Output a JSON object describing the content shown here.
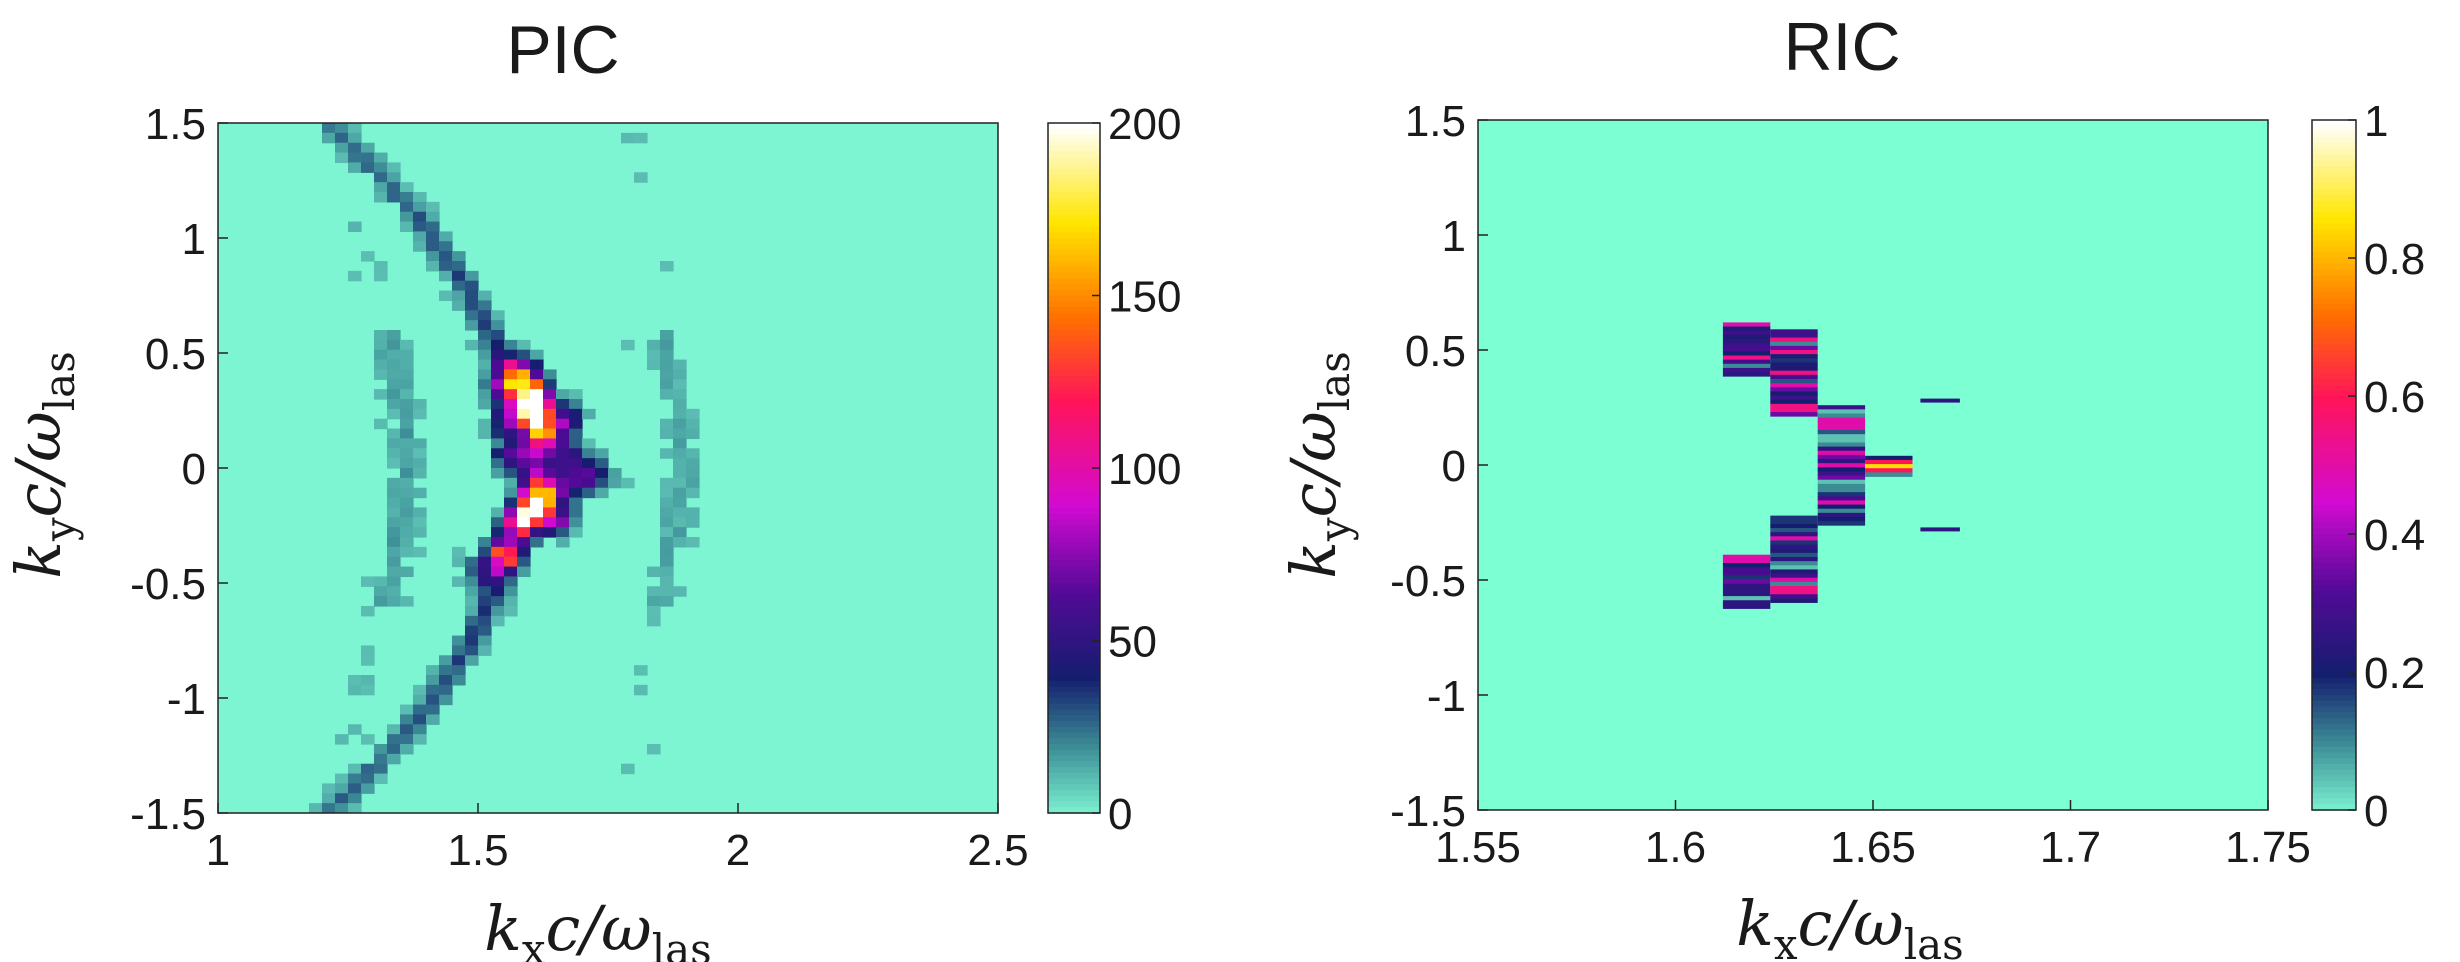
{
  "chart_data": [
    {
      "type": "heatmap",
      "title": "PIC",
      "xlabel": {
        "base": "k",
        "sub": "x",
        "rest": "c/ω",
        "rest_sub": "las"
      },
      "ylabel": {
        "base": "k",
        "sub": "y",
        "rest": "c/ω",
        "rest_sub": "las"
      },
      "xlim": [
        1,
        2.5
      ],
      "ylim": [
        -1.5,
        1.5
      ],
      "x_ticks": [
        1,
        1.5,
        2,
        2.5
      ],
      "x_tick_labels": [
        "1",
        "1.5",
        "2",
        "2.5"
      ],
      "y_ticks": [
        1.5,
        1,
        0.5,
        0,
        -0.5,
        -1,
        -1.5
      ],
      "y_tick_labels": [
        "1.5",
        "1",
        "0.5",
        "0",
        "-0.5",
        "-1",
        "-1.5"
      ],
      "colorbar": {
        "range": [
          0,
          200
        ],
        "ticks": [
          200,
          150,
          100,
          50,
          0
        ],
        "tick_labels": [
          "200",
          "150",
          "100",
          "50",
          "0"
        ]
      },
      "background_value": 8,
      "features": [
        {
          "kx": 1.6,
          "ky": 0.3,
          "value": 200
        },
        {
          "kx": 1.61,
          "ky": 0.22,
          "value": 185
        },
        {
          "kx": 1.59,
          "ky": 0.38,
          "value": 130
        },
        {
          "kx": 1.63,
          "ky": 0.14,
          "value": 110
        },
        {
          "kx": 1.57,
          "ky": 0.43,
          "value": 60
        },
        {
          "kx": 1.55,
          "ky": 0.35,
          "value": 55
        },
        {
          "kx": 1.56,
          "ky": 0.2,
          "value": 70
        },
        {
          "kx": 1.6,
          "ky": 0.06,
          "value": 60
        },
        {
          "kx": 1.67,
          "ky": 0.22,
          "value": 55
        },
        {
          "kx": 1.66,
          "ky": 0.06,
          "value": 50
        },
        {
          "kx": 1.56,
          "ky": 0.05,
          "value": 45
        },
        {
          "kx": 1.61,
          "ky": -0.16,
          "value": 150
        },
        {
          "kx": 1.59,
          "ky": -0.22,
          "value": 130
        },
        {
          "kx": 1.63,
          "ky": -0.1,
          "value": 90
        },
        {
          "kx": 1.55,
          "ky": -0.38,
          "value": 100
        },
        {
          "kx": 1.57,
          "ky": -0.28,
          "value": 70
        },
        {
          "kx": 1.61,
          "ky": -0.04,
          "value": 55
        },
        {
          "kx": 1.65,
          "ky": -0.22,
          "value": 60
        },
        {
          "kx": 1.67,
          "ky": -0.08,
          "value": 45
        },
        {
          "kx": 1.7,
          "ky": 0.0,
          "value": 40
        },
        {
          "kx": 1.72,
          "ky": -0.04,
          "value": 38
        },
        {
          "kx": 1.51,
          "ky": -0.46,
          "value": 45
        }
      ]
    },
    {
      "type": "heatmap",
      "title": "RIC",
      "xlabel": {
        "base": "k",
        "sub": "x",
        "rest": "c/ω",
        "rest_sub": "las"
      },
      "ylabel": {
        "base": "k",
        "sub": "y",
        "rest": "c/ω",
        "rest_sub": "las"
      },
      "xlim": [
        1.55,
        1.75
      ],
      "ylim": [
        -1.5,
        1.5
      ],
      "x_ticks": [
        1.55,
        1.6,
        1.65,
        1.7,
        1.75
      ],
      "x_tick_labels": [
        "1.55",
        "1.6",
        "1.65",
        "1.7",
        "1.75"
      ],
      "y_ticks": [
        1.5,
        1,
        0.5,
        0,
        -0.5,
        -1,
        -1.5
      ],
      "y_tick_labels": [
        "1.5",
        "1",
        "0.5",
        "0",
        "-0.5",
        "-1",
        "-1.5"
      ],
      "colorbar": {
        "range": [
          0,
          1
        ],
        "ticks": [
          1,
          0.8,
          0.6,
          0.4,
          0.2,
          0
        ],
        "tick_labels": [
          "1",
          "0.8",
          "0.6",
          "0.4",
          "0.2",
          "0"
        ]
      },
      "background_value": 0,
      "columns": [
        {
          "kx_start": 1.612,
          "kx_end": 1.624,
          "ky_ranges": [
            [
              0.39,
              0.62
            ],
            [
              -0.62,
              -0.39
            ]
          ]
        },
        {
          "kx_start": 1.624,
          "kx_end": 1.636,
          "ky_ranges": [
            [
              0.22,
              0.59
            ],
            [
              -0.59,
              -0.22
            ]
          ]
        },
        {
          "kx_start": 1.636,
          "kx_end": 1.648,
          "ky_ranges": [
            [
              -0.26,
              0.26
            ]
          ]
        },
        {
          "kx_start": 1.648,
          "kx_end": 1.66,
          "ky_ranges": [
            [
              -0.04,
              0.04
            ]
          ]
        }
      ],
      "isolated_strips": [
        {
          "kx_start": 1.662,
          "kx_end": 1.672,
          "ky": 0.28,
          "value": 0.25
        },
        {
          "kx_start": 1.662,
          "kx_end": 1.672,
          "ky": -0.28,
          "value": 0.25
        }
      ]
    }
  ]
}
